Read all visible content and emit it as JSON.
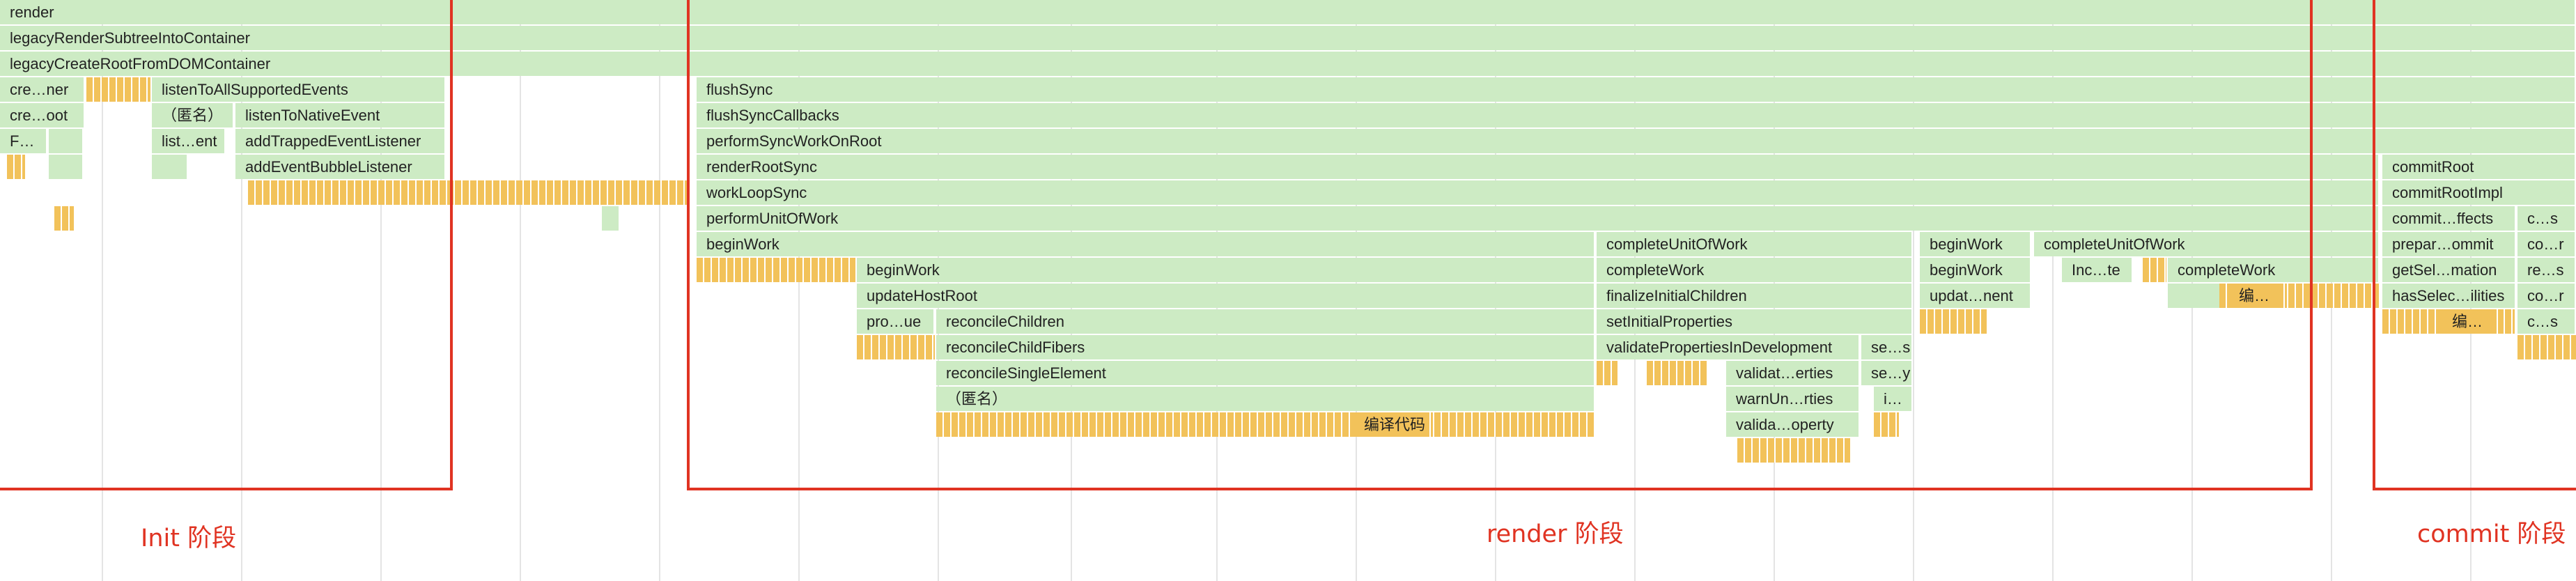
{
  "annotations": {
    "phases": [
      {
        "label": "Init 阶段",
        "color": "#e03322"
      },
      {
        "label": "render 阶段",
        "color": "#e03322"
      },
      {
        "label": "commit 阶段",
        "color": "#e03322"
      }
    ]
  },
  "flame": {
    "colors": {
      "js": "#cdebc4",
      "compile": "#f2c25a"
    },
    "frames": [
      {
        "label": "render",
        "type": "js"
      },
      {
        "label": "legacyRenderSubtreeIntoContainer",
        "type": "js"
      },
      {
        "label": "legacyCreateRootFromDOMContainer",
        "type": "js"
      },
      {
        "label": "cre…ner",
        "type": "js"
      },
      {
        "label": "listenToAllSupportedEvents",
        "type": "js"
      },
      {
        "label": "cre…oot",
        "type": "js"
      },
      {
        "label": "（匿名）",
        "type": "js"
      },
      {
        "label": "listenToNativeEvent",
        "type": "js"
      },
      {
        "label": "F…",
        "type": "js"
      },
      {
        "label": "list…ent",
        "type": "js"
      },
      {
        "label": "addTrappedEventListener",
        "type": "js"
      },
      {
        "label": "addEventBubbleListener",
        "type": "js"
      },
      {
        "label": "flushSync",
        "type": "js"
      },
      {
        "label": "flushSyncCallbacks",
        "type": "js"
      },
      {
        "label": "performSyncWorkOnRoot",
        "type": "js"
      },
      {
        "label": "renderRootSync",
        "type": "js"
      },
      {
        "label": "workLoopSync",
        "type": "js"
      },
      {
        "label": "performUnitOfWork",
        "type": "js"
      },
      {
        "label": "beginWork",
        "type": "js"
      },
      {
        "label": "beginWork",
        "type": "js"
      },
      {
        "label": "updateHostRoot",
        "type": "js"
      },
      {
        "label": "pro…ue",
        "type": "js"
      },
      {
        "label": "reconcileChildren",
        "type": "js"
      },
      {
        "label": "reconcileChildFibers",
        "type": "js"
      },
      {
        "label": "reconcileSingleElement",
        "type": "js"
      },
      {
        "label": "（匿名）",
        "type": "js"
      },
      {
        "label": "编译代码",
        "type": "compile"
      },
      {
        "label": "completeUnitOfWork",
        "type": "js"
      },
      {
        "label": "completeWork",
        "type": "js"
      },
      {
        "label": "finalizeInitialChildren",
        "type": "js"
      },
      {
        "label": "setInitialProperties",
        "type": "js"
      },
      {
        "label": "validatePropertiesInDevelopment",
        "type": "js"
      },
      {
        "label": "se…s",
        "type": "js"
      },
      {
        "label": "validat…erties",
        "type": "js"
      },
      {
        "label": "se…y",
        "type": "js"
      },
      {
        "label": "warnUn…rties",
        "type": "js"
      },
      {
        "label": "i…",
        "type": "js"
      },
      {
        "label": "valida…operty",
        "type": "js"
      },
      {
        "label": "beginWork",
        "type": "js"
      },
      {
        "label": "beginWork",
        "type": "js"
      },
      {
        "label": "updat…nent",
        "type": "js"
      },
      {
        "label": "completeUnitOfWork",
        "type": "js"
      },
      {
        "label": "Inc…te",
        "type": "js"
      },
      {
        "label": "completeWork",
        "type": "js"
      },
      {
        "label": "编…",
        "type": "compile"
      },
      {
        "label": "commitRoot",
        "type": "js"
      },
      {
        "label": "commitRootImpl",
        "type": "js"
      },
      {
        "label": "commit…ffects",
        "type": "js"
      },
      {
        "label": "c…s",
        "type": "js"
      },
      {
        "label": "prepar…ommit",
        "type": "js"
      },
      {
        "label": "co…r",
        "type": "js"
      },
      {
        "label": "getSel…mation",
        "type": "js"
      },
      {
        "label": "re…s",
        "type": "js"
      },
      {
        "label": "hasSelec…ilities",
        "type": "js"
      },
      {
        "label": "co…r",
        "type": "js"
      },
      {
        "label": "编…",
        "type": "compile"
      },
      {
        "label": "c…s",
        "type": "js"
      }
    ]
  }
}
